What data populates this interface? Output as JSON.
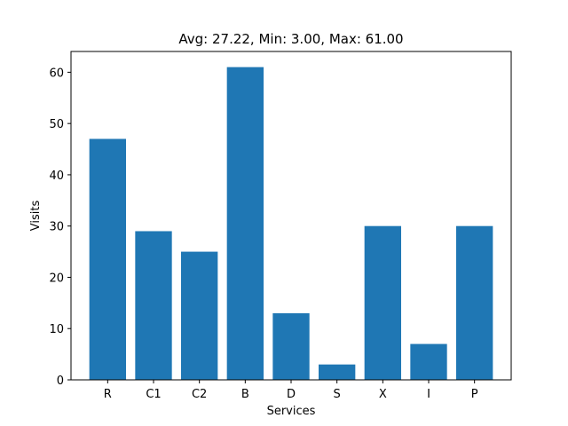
{
  "chart_data": {
    "type": "bar",
    "title": "Avg: 27.22, Min: 3.00, Max: 61.00",
    "xlabel": "Services",
    "ylabel": "Visits",
    "categories": [
      "R",
      "C1",
      "C2",
      "B",
      "D",
      "S",
      "X",
      "I",
      "P"
    ],
    "values": [
      47,
      29,
      25,
      61,
      13,
      3,
      30,
      7,
      30
    ],
    "ylim": [
      0,
      64.05
    ],
    "yticks": [
      0,
      10,
      20,
      30,
      40,
      50,
      60
    ],
    "bar_color": "#1f77b4",
    "grid": false,
    "legend": "none"
  }
}
